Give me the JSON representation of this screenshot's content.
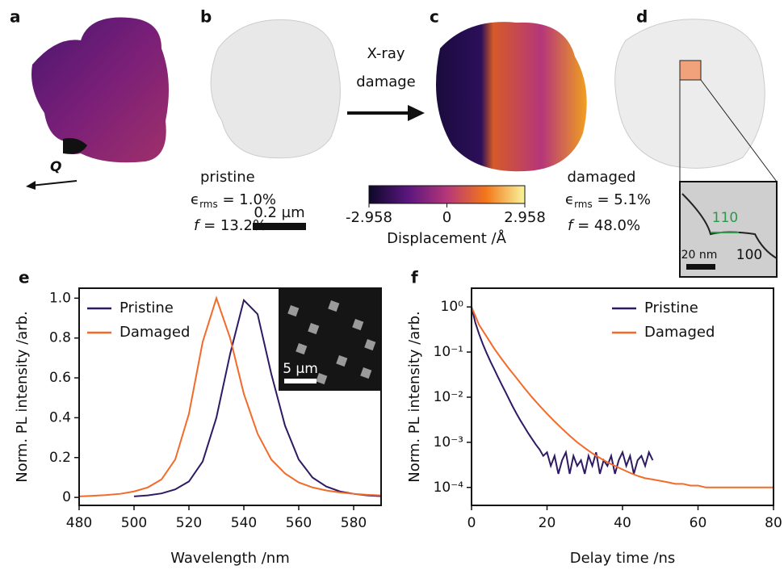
{
  "panels": {
    "a": {
      "label": "a",
      "vector": "Q"
    },
    "b": {
      "label": "b",
      "state": "pristine",
      "epsilon": "ϵ",
      "sub": "rms",
      "strain": " = 1.0%",
      "f": "f",
      "fraction": " = 13.2%",
      "scale": "0.2 µm"
    },
    "arrow": {
      "line1": "X-ray",
      "line2": "damage"
    },
    "c": {
      "label": "c",
      "colorbar": {
        "label": "Displacement /Å",
        "lim": [
          -2.958,
          2.958
        ],
        "ticks": [
          -2.958,
          0,
          2.958
        ]
      }
    },
    "d": {
      "label": "d",
      "state": "damaged",
      "epsilon": "ϵ",
      "sub": "rms",
      "strain": " = 5.1%",
      "f": "f",
      "fraction": " = 48.0%",
      "inset": {
        "facet1": "110",
        "facet2": "100",
        "scale": "20 nm"
      }
    }
  },
  "chart_data": [
    {
      "type": "line",
      "panel": "e",
      "xlabel": "Wavelength /nm",
      "ylabel": "Norm. PL intensity /arb.",
      "inset_scale": "5 µm",
      "x": [
        480,
        485,
        490,
        495,
        500,
        505,
        510,
        515,
        520,
        525,
        530,
        535,
        540,
        545,
        550,
        555,
        560,
        565,
        570,
        575,
        580,
        585,
        590
      ],
      "series": [
        {
          "name": "Pristine",
          "color": "#2e1a63",
          "values": [
            null,
            null,
            null,
            null,
            0.005,
            0.01,
            0.02,
            0.04,
            0.08,
            0.18,
            0.4,
            0.72,
            0.99,
            0.92,
            0.62,
            0.36,
            0.19,
            0.1,
            0.055,
            0.03,
            0.018,
            0.01,
            0.006
          ]
        },
        {
          "name": "Damaged",
          "color": "#f26b2a",
          "values": [
            0.005,
            0.008,
            0.012,
            0.018,
            0.03,
            0.05,
            0.09,
            0.19,
            0.42,
            0.78,
            1.0,
            0.8,
            0.52,
            0.32,
            0.19,
            0.12,
            0.075,
            0.05,
            0.035,
            0.025,
            0.018,
            0.013,
            0.01
          ]
        }
      ],
      "xlim": [
        480,
        590
      ],
      "xticks": [
        480,
        500,
        520,
        540,
        560,
        580
      ],
      "ylim": [
        -0.04,
        1.05
      ],
      "yticks": [
        0,
        0.2,
        0.4,
        0.6,
        0.8,
        {
          "value": 1,
          "label": "1.0"
        }
      ],
      "legend": "upper left"
    },
    {
      "type": "line",
      "panel": "f",
      "xlabel": "Delay time /ns",
      "ylabel": "Norm. PL intensity /arb.",
      "log_y": true,
      "series": [
        {
          "name": "Pristine",
          "color": "#2e1a63",
          "x": [
            0,
            1,
            2,
            3,
            4,
            5,
            6,
            7,
            8,
            9,
            10,
            11,
            12,
            13,
            14,
            15,
            16,
            17,
            18,
            19,
            20,
            21,
            22,
            23,
            24,
            25,
            26,
            27,
            28,
            29,
            30,
            31,
            32,
            33,
            34,
            35,
            36,
            37,
            38,
            39,
            40,
            41,
            42,
            43,
            44,
            45,
            46,
            47,
            48
          ],
          "values": [
            1,
            0.45,
            0.25,
            0.15,
            0.095,
            0.062,
            0.042,
            0.028,
            0.019,
            0.013,
            0.0088,
            0.006,
            0.0042,
            0.003,
            0.0022,
            0.0016,
            0.0012,
            0.0009,
            0.0007,
            0.0005,
            0.0006,
            0.0003,
            0.0005,
            0.0002,
            0.0004,
            0.0006,
            0.0002,
            0.0005,
            0.0003,
            0.0004,
            0.0002,
            0.0005,
            0.0003,
            0.0006,
            0.0002,
            0.0004,
            0.0003,
            0.0005,
            0.0002,
            0.0004,
            0.0006,
            0.0003,
            0.0005,
            0.0002,
            0.0004,
            0.0005,
            0.0003,
            0.0006,
            0.0004
          ]
        },
        {
          "name": "Damaged",
          "color": "#f26b2a",
          "x": [
            0,
            2,
            4,
            6,
            8,
            10,
            12,
            14,
            16,
            18,
            20,
            22,
            24,
            26,
            28,
            30,
            32,
            34,
            36,
            38,
            40,
            42,
            44,
            46,
            48,
            50,
            52,
            54,
            56,
            58,
            60,
            62,
            64,
            66,
            68,
            70,
            72,
            74,
            76,
            78,
            80
          ],
          "values": [
            1,
            0.4,
            0.22,
            0.12,
            0.07,
            0.042,
            0.026,
            0.016,
            0.01,
            0.0065,
            0.0043,
            0.0029,
            0.002,
            0.0014,
            0.001,
            0.00075,
            0.00057,
            0.00045,
            0.00036,
            0.0003,
            0.00025,
            0.00021,
            0.00018,
            0.00016,
            0.00015,
            0.00014,
            0.00013,
            0.00012,
            0.00012,
            0.00011,
            0.00011,
            0.0001,
            0.0001,
            0.0001,
            0.0001,
            0.0001,
            0.0001,
            0.0001,
            0.0001,
            0.0001,
            0.0001
          ]
        }
      ],
      "xlim": [
        0,
        80
      ],
      "xticks": [
        0,
        20,
        40,
        60,
        80
      ],
      "ylim": [
        4e-05,
        2.6
      ],
      "yticks": [
        {
          "value": 0.0001,
          "label": "10⁻⁴"
        },
        {
          "value": 0.001,
          "label": "10⁻³"
        },
        {
          "value": 0.01,
          "label": "10⁻²"
        },
        {
          "value": 0.1,
          "label": "10⁻¹"
        },
        {
          "value": 1,
          "label": "10⁰"
        }
      ],
      "legend": "upper right"
    }
  ]
}
